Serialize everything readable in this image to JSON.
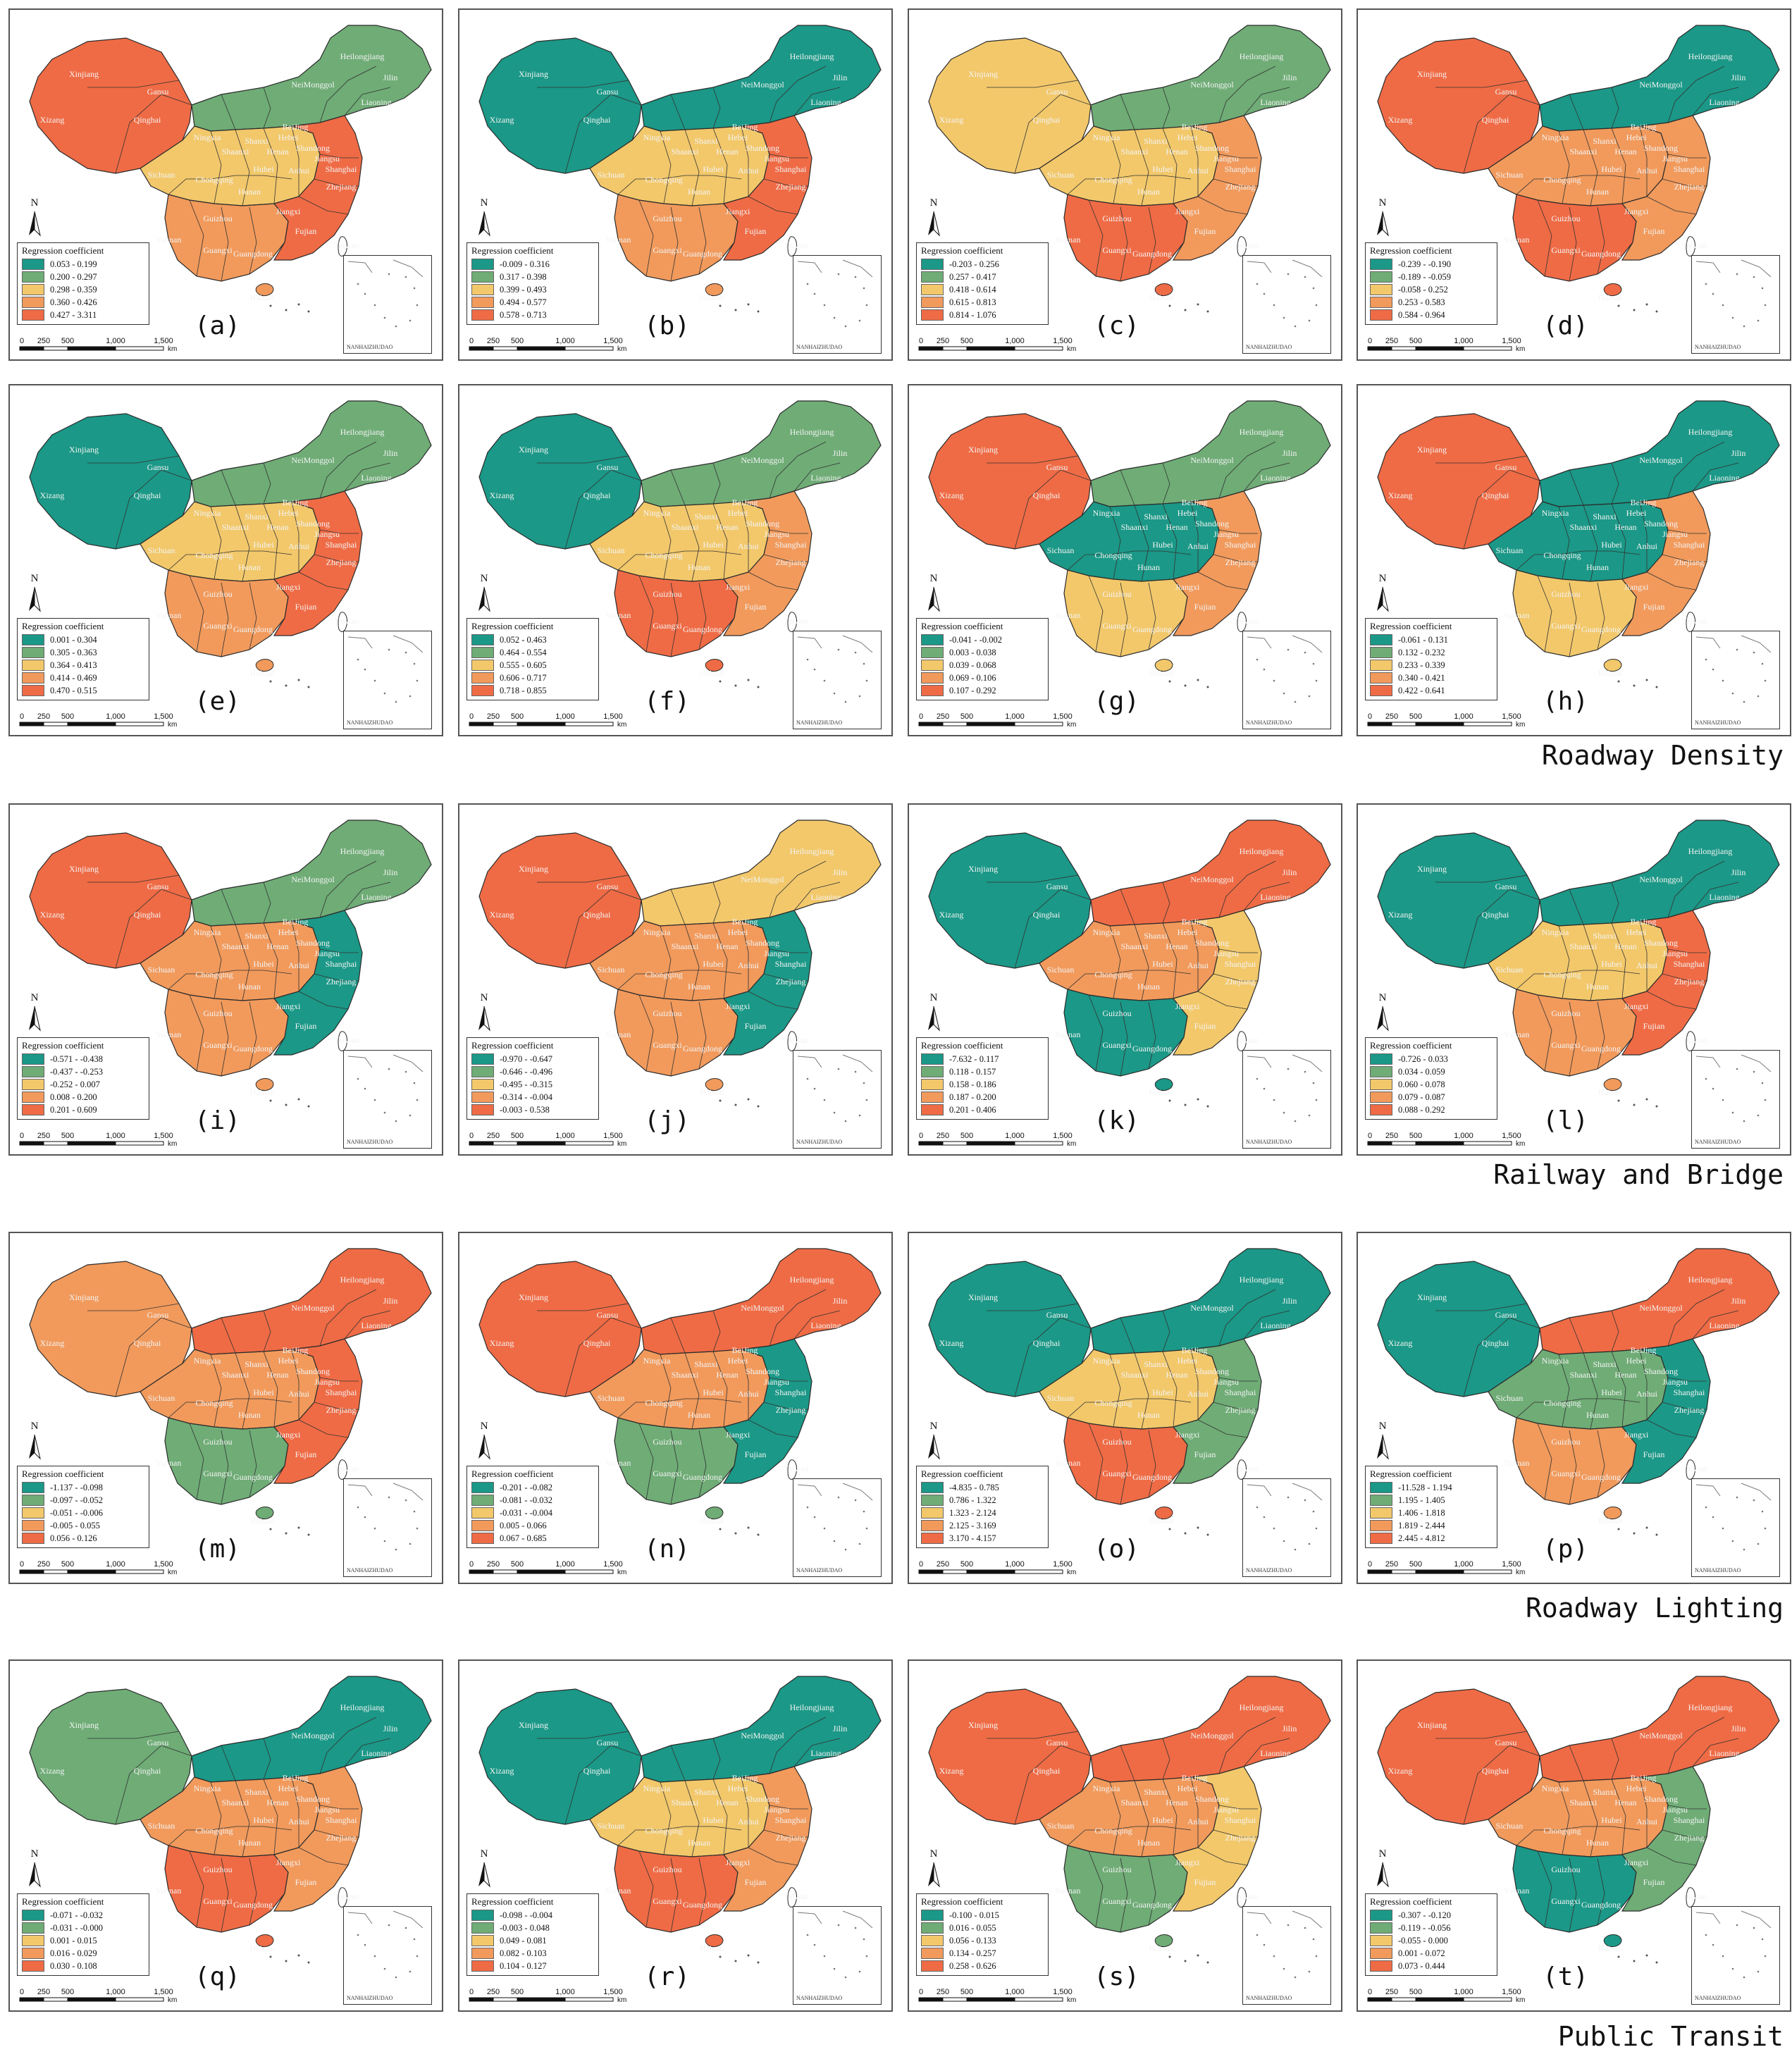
{
  "legend_title": "Regression coefficient",
  "inset_label": "NANHAIZHUDAO",
  "north_label": "N",
  "scale": {
    "ticks": [
      "0",
      "250",
      "500",
      "1,000",
      "1,500"
    ],
    "unit": "km"
  },
  "palette": [
    "#1b9887",
    "#6fac76",
    "#f2c86b",
    "#f19a5c",
    "#ef6b45"
  ],
  "row_captions": [
    {
      "text": "Roadway Density",
      "after_row": 1
    },
    {
      "text": "Railway and Bridge",
      "after_row": 2
    },
    {
      "text": "Roadway Lighting",
      "after_row": 3
    },
    {
      "text": "Public Transit",
      "after_row": 4
    }
  ],
  "region_labels": [
    "Xinjiang",
    "Xizang",
    "Qinghai",
    "Gansu",
    "NeiMonggol",
    "Heilongjiang",
    "Jilin",
    "Liaoning",
    "Sichuan",
    "Yunnan",
    "Guangxi",
    "Guangdong",
    "Taiwan",
    "Hainan",
    "Hubei",
    "Henan",
    "Shandong",
    "Shanxi",
    "Hunan",
    "Jiangxi",
    "Fujian",
    "Zhejiang",
    "Shanghai",
    "Jiangsu",
    "Anhui",
    "Guizhou",
    "Chongqing",
    "Shaanxi",
    "Ningxia",
    "BeiJing",
    "Hebei"
  ],
  "panels": [
    {
      "label": "(a)",
      "ranges": [
        "0.053 - 0.199",
        "0.200 - 0.297",
        "0.298 - 0.359",
        "0.360 - 0.426",
        "0.427 - 3.311"
      ],
      "west": 4,
      "north": 1,
      "center": 2,
      "south": 3,
      "east": 4
    },
    {
      "label": "(b)",
      "ranges": [
        "-0.009 - 0.316",
        "0.317 - 0.398",
        "0.399 - 0.493",
        "0.494 - 0.577",
        "0.578 - 0.713"
      ],
      "west": 0,
      "north": 0,
      "center": 2,
      "south": 3,
      "east": 4
    },
    {
      "label": "(c)",
      "ranges": [
        "-0.203 - 0.256",
        "0.257 - 0.417",
        "0.418 - 0.614",
        "0.615 - 0.813",
        "0.814 - 1.076"
      ],
      "west": 2,
      "north": 1,
      "center": 2,
      "south": 4,
      "east": 3
    },
    {
      "label": "(d)",
      "ranges": [
        "-0.239 - -0.190",
        "-0.189 - -0.059",
        "-0.058 - 0.252",
        "0.253 - 0.583",
        "0.584 - 0.964"
      ],
      "west": 4,
      "north": 0,
      "center": 3,
      "south": 4,
      "east": 3
    },
    {
      "label": "(e)",
      "ranges": [
        "0.001 - 0.304",
        "0.305 - 0.363",
        "0.364 - 0.413",
        "0.414 - 0.469",
        "0.470 - 0.515"
      ],
      "west": 0,
      "north": 1,
      "center": 2,
      "south": 3,
      "east": 4
    },
    {
      "label": "(f)",
      "ranges": [
        "0.052 - 0.463",
        "0.464 - 0.554",
        "0.555 - 0.605",
        "0.606 - 0.717",
        "0.718 - 0.855"
      ],
      "west": 0,
      "north": 1,
      "center": 2,
      "south": 4,
      "east": 3
    },
    {
      "label": "(g)",
      "ranges": [
        "-0.041 - -0.002",
        "0.003 - 0.038",
        "0.039 - 0.068",
        "0.069 - 0.106",
        "0.107 - 0.292"
      ],
      "west": 4,
      "north": 1,
      "center": 0,
      "south": 2,
      "east": 3
    },
    {
      "label": "(h)",
      "ranges": [
        "-0.061 - 0.131",
        "0.132 - 0.232",
        "0.233 - 0.339",
        "0.340 - 0.421",
        "0.422 - 0.641"
      ],
      "west": 4,
      "north": 0,
      "center": 0,
      "south": 2,
      "east": 3
    },
    {
      "label": "(i)",
      "ranges": [
        "-0.571 - -0.438",
        "-0.437 - -0.253",
        "-0.252 - 0.007",
        "0.008 - 0.200",
        "0.201 - 0.609"
      ],
      "west": 4,
      "north": 1,
      "center": 3,
      "south": 3,
      "east": 0
    },
    {
      "label": "(j)",
      "ranges": [
        "-0.970 - -0.647",
        "-0.646 - -0.496",
        "-0.495 - -0.315",
        "-0.314 - -0.004",
        "-0.003 - 0.538"
      ],
      "west": 4,
      "north": 2,
      "center": 3,
      "south": 3,
      "east": 0
    },
    {
      "label": "(k)",
      "ranges": [
        "-7.632 - 0.117",
        "0.118 - 0.157",
        "0.158 - 0.186",
        "0.187 - 0.200",
        "0.201 - 0.406"
      ],
      "west": 0,
      "north": 4,
      "center": 3,
      "south": 0,
      "east": 2
    },
    {
      "label": "(l)",
      "ranges": [
        "-0.726 - 0.033",
        "0.034 - 0.059",
        "0.060 - 0.078",
        "0.079 - 0.087",
        "0.088 - 0.292"
      ],
      "west": 0,
      "north": 0,
      "center": 2,
      "south": 3,
      "east": 4
    },
    {
      "label": "(m)",
      "ranges": [
        "-1.137 - -0.098",
        "-0.097 - -0.052",
        "-0.051 - -0.006",
        "-0.005 - 0.055",
        "0.056 - 0.126"
      ],
      "west": 3,
      "north": 4,
      "center": 3,
      "south": 1,
      "east": 4
    },
    {
      "label": "(n)",
      "ranges": [
        "-0.201 - -0.082",
        "-0.081 - -0.032",
        "-0.031 - -0.004",
        "0.005 - 0.066",
        "0.067 - 0.685"
      ],
      "west": 4,
      "north": 4,
      "center": 3,
      "south": 1,
      "east": 0
    },
    {
      "label": "(o)",
      "ranges": [
        "-4.835 - 0.785",
        "0.786 - 1.322",
        "1.323 - 2.124",
        "2.125 - 3.169",
        "3.170 - 4.157"
      ],
      "west": 0,
      "north": 0,
      "center": 2,
      "south": 4,
      "east": 1
    },
    {
      "label": "(p)",
      "ranges": [
        "-11.528 - 1.194",
        "1.195 - 1.405",
        "1.406 - 1.818",
        "1.819 - 2.444",
        "2.445 - 4.812"
      ],
      "west": 0,
      "north": 4,
      "center": 1,
      "south": 3,
      "east": 0
    },
    {
      "label": "(q)",
      "ranges": [
        "-0.071 - -0.032",
        "-0.031 - -0.000",
        "0.001 - 0.015",
        "0.016 - 0.029",
        "0.030 - 0.108"
      ],
      "west": 1,
      "north": 0,
      "center": 3,
      "south": 4,
      "east": 3
    },
    {
      "label": "(r)",
      "ranges": [
        "-0.098 - -0.004",
        "-0.003 - 0.048",
        "0.049 - 0.081",
        "0.082 - 0.103",
        "0.104 - 0.127"
      ],
      "west": 0,
      "north": 0,
      "center": 2,
      "south": 4,
      "east": 3
    },
    {
      "label": "(s)",
      "ranges": [
        "-0.100 - 0.015",
        "0.016 - 0.055",
        "0.056 - 0.133",
        "0.134 - 0.257",
        "0.258 - 0.626"
      ],
      "west": 4,
      "north": 4,
      "center": 3,
      "south": 1,
      "east": 2
    },
    {
      "label": "(t)",
      "ranges": [
        "-0.307 - -0.120",
        "-0.119 - -0.056",
        "-0.055 - 0.000",
        "0.001 - 0.072",
        "0.073 - 0.444"
      ],
      "west": 4,
      "north": 4,
      "center": 3,
      "south": 0,
      "east": 1
    }
  ]
}
